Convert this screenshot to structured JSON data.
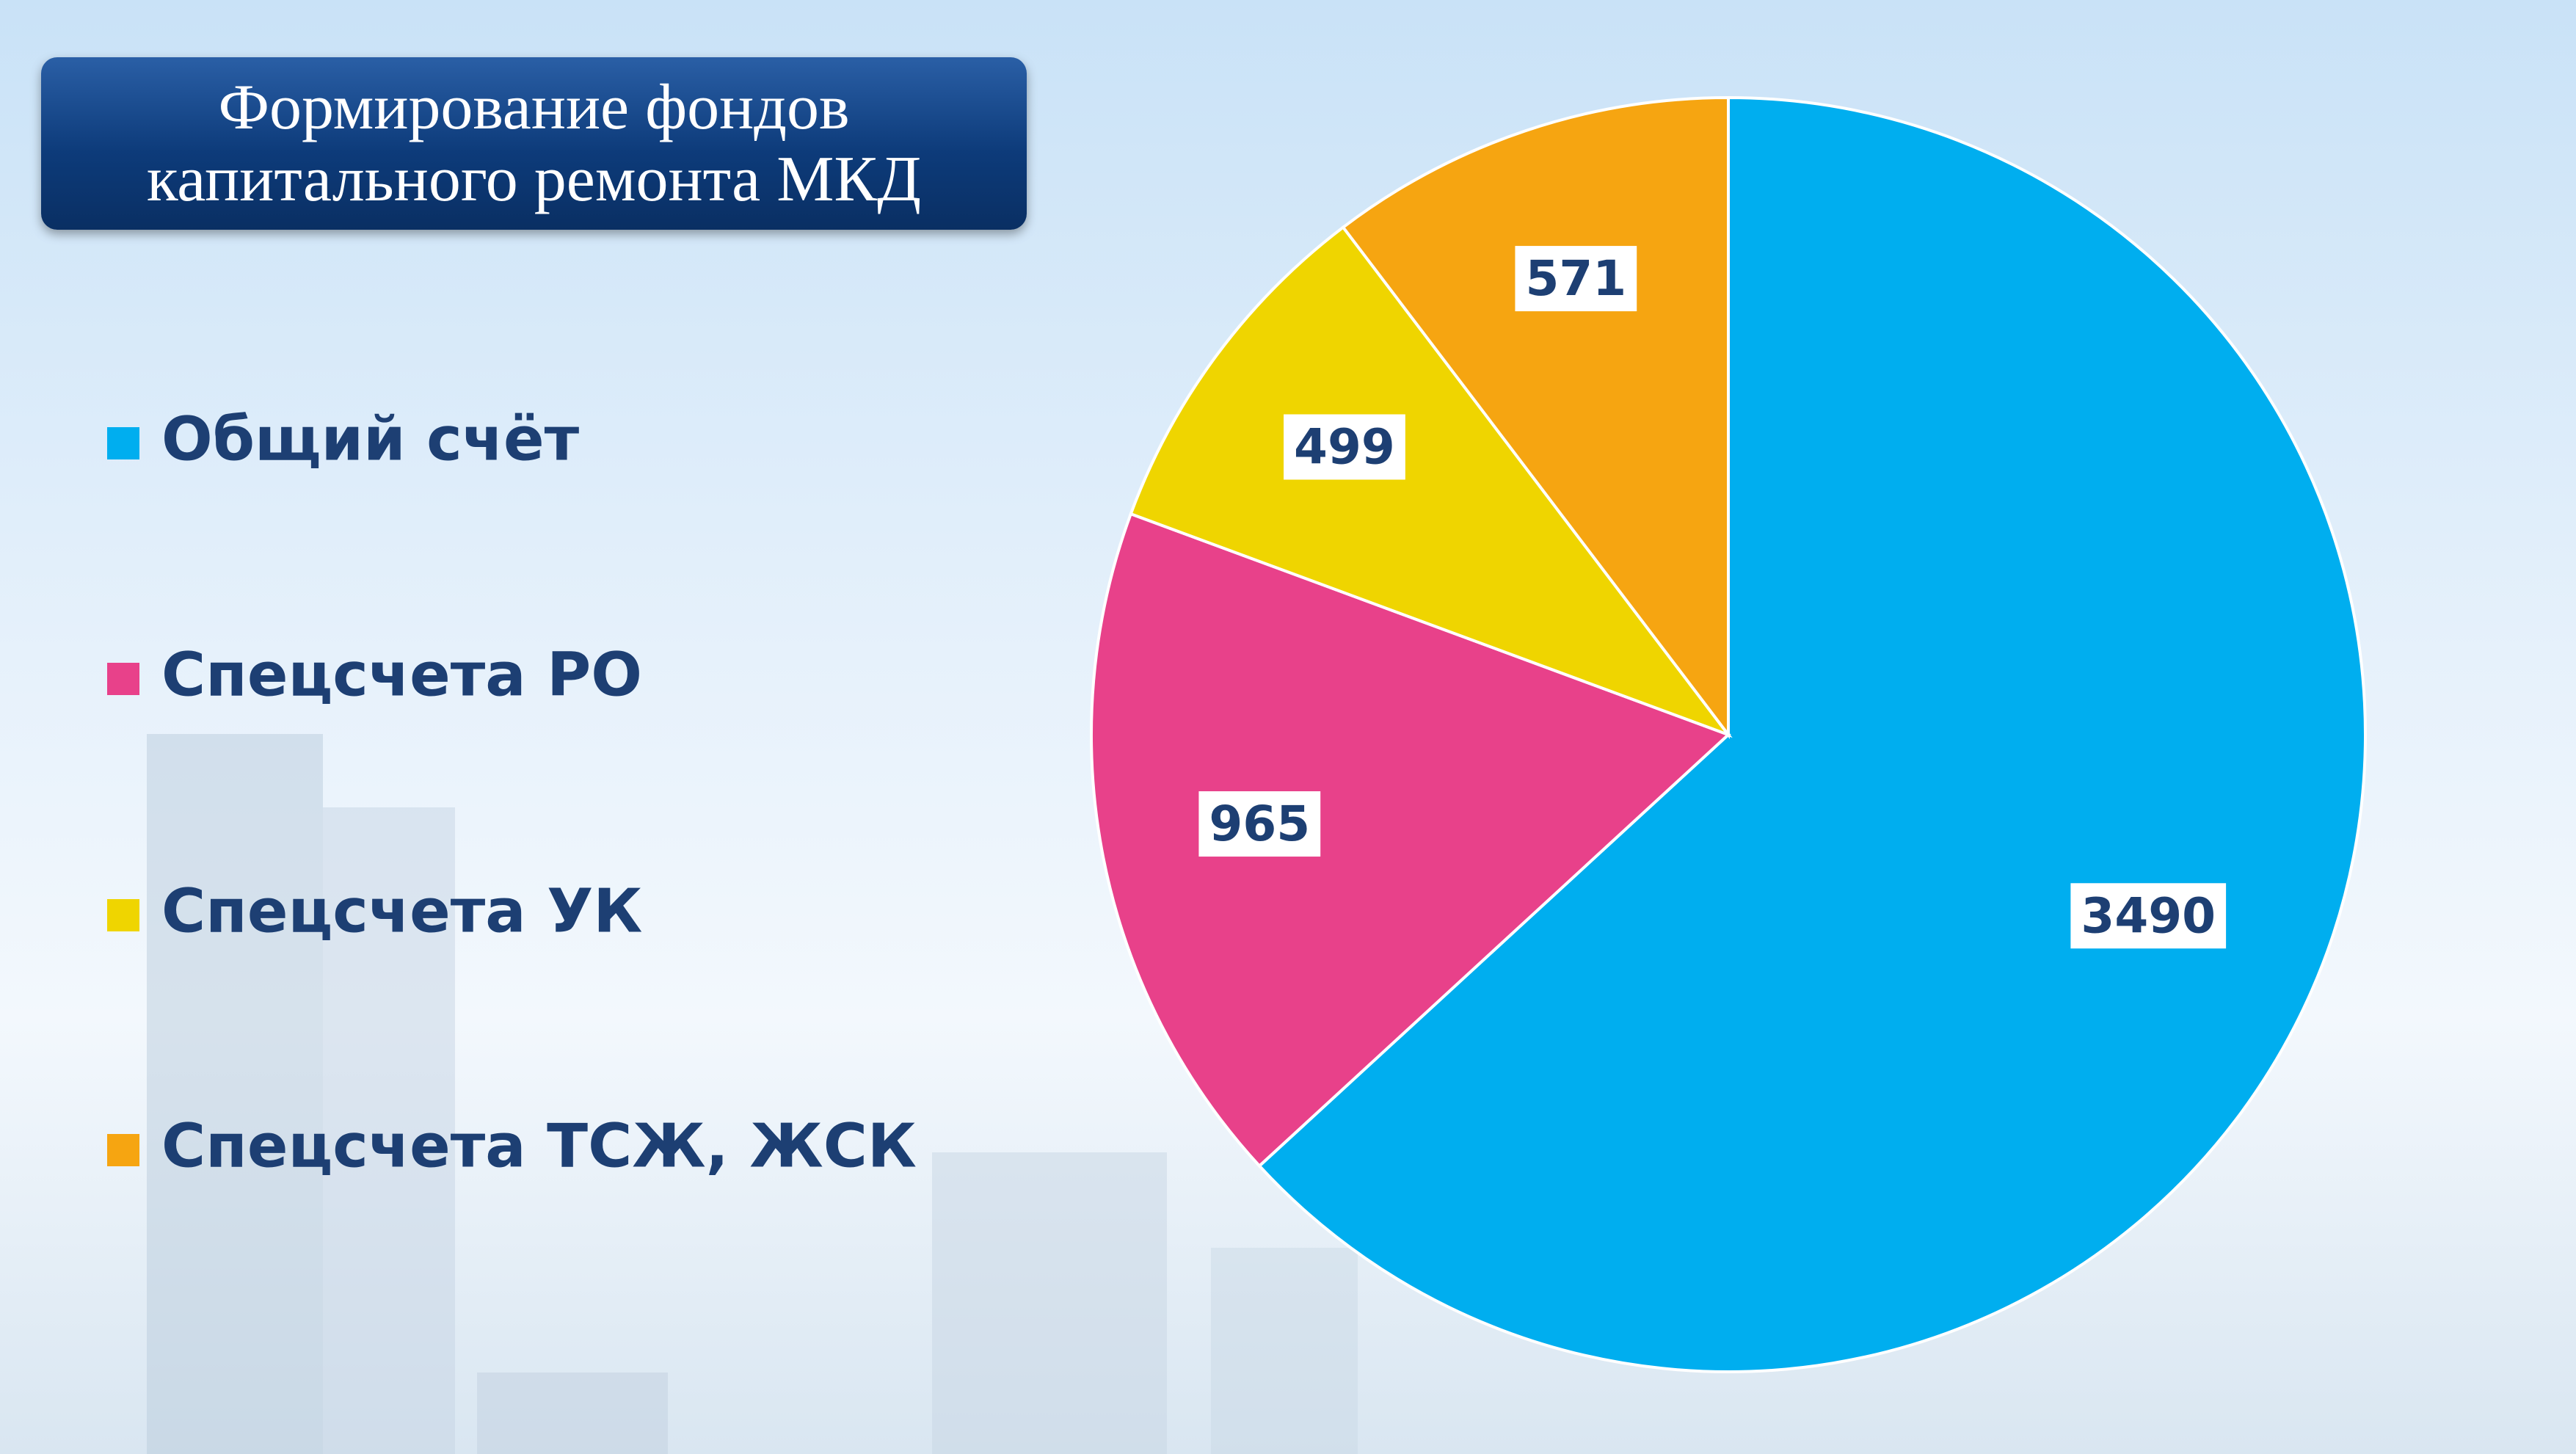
{
  "chart_data": {
    "type": "pie",
    "title": "Формирование фондов капитального ремонта МКД",
    "categories": [
      "Общий счёт",
      "Спецсчета РО",
      "Спецсчета УК",
      "Спецсчета ТСЖ, ЖСК"
    ],
    "values": [
      3490,
      965,
      499,
      571
    ],
    "colors": [
      "#00aeef",
      "#e8418a",
      "#efd500",
      "#f6a511"
    ],
    "legend": "left"
  }
}
